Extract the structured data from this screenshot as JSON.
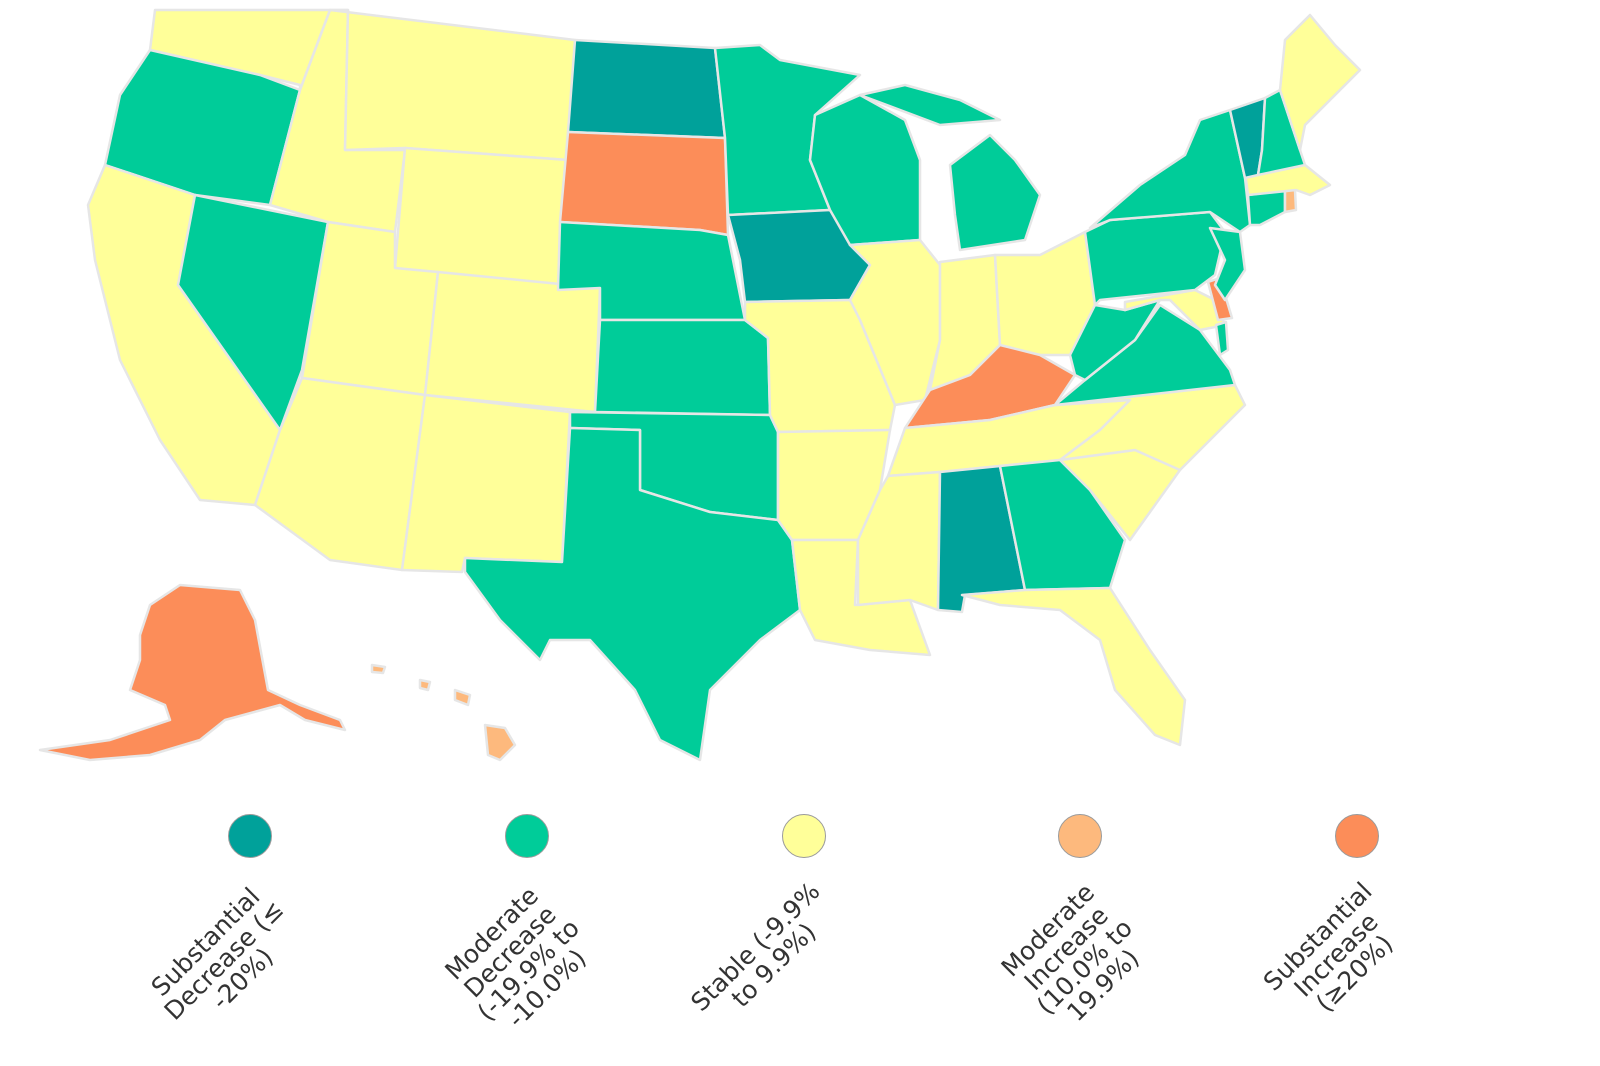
{
  "colors": {
    "substantial_decrease": "#00A19A",
    "moderate_decrease": "#00CC99",
    "stable": "#FFFF99",
    "moderate_increase": "#FDB97D",
    "substantial_increase": "#FC8D59"
  },
  "states": {
    "WA": "stable",
    "OR": "moderate_decrease",
    "CA": "stable",
    "NV": "moderate_decrease",
    "ID": "stable",
    "MT": "stable",
    "WY": "stable",
    "UT": "stable",
    "AZ": "stable",
    "CO": "stable",
    "NM": "stable",
    "ND": "substantial_decrease",
    "SD": "substantial_increase",
    "NE": "moderate_decrease",
    "KS": "moderate_decrease",
    "OK": "moderate_decrease",
    "TX": "moderate_decrease",
    "MN": "moderate_decrease",
    "IA": "substantial_decrease",
    "MO": "stable",
    "AR": "stable",
    "LA": "stable",
    "WI": "moderate_decrease",
    "IL": "stable",
    "MI": "moderate_decrease",
    "IN": "stable",
    "OH": "stable",
    "KY": "substantial_increase",
    "TN": "stable",
    "MS": "stable",
    "AL": "substantial_decrease",
    "GA": "moderate_decrease",
    "FL": "stable",
    "SC": "stable",
    "NC": "stable",
    "VA": "moderate_decrease",
    "WV": "moderate_decrease",
    "PA": "moderate_decrease",
    "NY": "moderate_decrease",
    "VT": "substantial_decrease",
    "NH": "moderate_decrease",
    "ME": "stable",
    "MA": "stable",
    "RI": "moderate_increase",
    "CT": "moderate_decrease",
    "NJ": "moderate_decrease",
    "DE": "substantial_increase",
    "MD": "stable",
    "DC": "moderate_decrease",
    "AK": "substantial_increase",
    "HI": "moderate_increase"
  },
  "legend": [
    {
      "category": "substantial_decrease",
      "label": "Substantial\nDecrease (≤\n-20%)"
    },
    {
      "category": "moderate_decrease",
      "label": "Moderate\nDecrease\n(-19.9% to\n-10.0%)"
    },
    {
      "category": "stable",
      "label": "Stable (-9.9%\nto 9.9%)"
    },
    {
      "category": "moderate_increase",
      "label": "Moderate\nIncrease\n(10.0% to\n19.9%)"
    },
    {
      "category": "substantial_increase",
      "label": "Substantial\nIncrease\n(≥20%)"
    }
  ]
}
